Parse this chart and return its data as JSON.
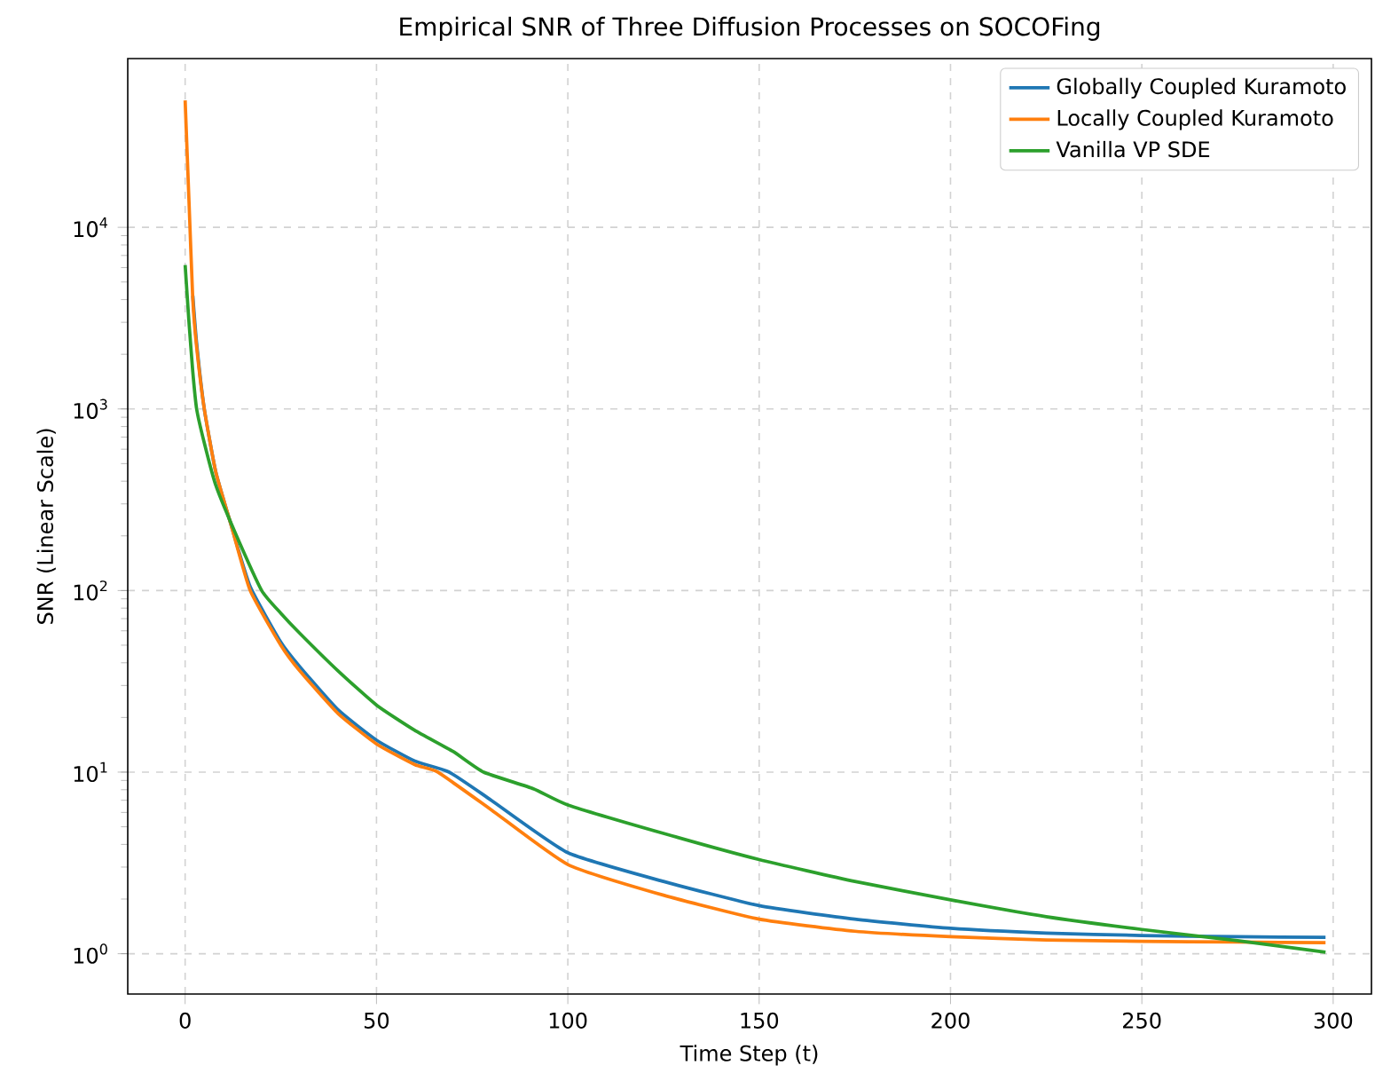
{
  "chart_data": {
    "type": "line",
    "title": "Empirical SNR of Three Diffusion Processes on SOCOFing",
    "xlabel": "Time Step (t)",
    "ylabel": "SNR (Linear Scale)",
    "log": "y",
    "grid": true,
    "legend": "top right",
    "xlim": [
      -15,
      310
    ],
    "xticks": [
      0,
      50,
      100,
      150,
      200,
      250,
      300
    ],
    "ylim": [
      0.6,
      85000
    ],
    "yticks": [
      {
        "value": 1,
        "label": "10$^{0}$"
      },
      {
        "value": 10,
        "label": "10$^{1}$"
      },
      {
        "value": 100,
        "label": "10$^{2}$"
      },
      {
        "value": 1000,
        "label": "10$^{3}$"
      },
      {
        "value": 10000,
        "label": "10$^{4}$"
      }
    ],
    "series": [
      {
        "name": "Globally Coupled Kuramoto",
        "color": "#1f77b4",
        "x": [
          2,
          3,
          5,
          8,
          12,
          17,
          25,
          30,
          40,
          50,
          60,
          69,
          80,
          100,
          125,
          150,
          175,
          200,
          225,
          250,
          275,
          298
        ],
        "values": [
          4200,
          2300,
          1000,
          450,
          230,
          105,
          52,
          38,
          22,
          15,
          11.5,
          10,
          7,
          3.6,
          2.5,
          1.84,
          1.55,
          1.38,
          1.3,
          1.26,
          1.24,
          1.23
        ]
      },
      {
        "name": "Locally Coupled Kuramoto",
        "color": "#ff7f0e",
        "x": [
          0,
          1,
          2,
          3,
          5,
          8,
          12,
          17,
          25,
          30,
          40,
          50,
          60,
          66,
          80,
          100,
          125,
          150,
          175,
          200,
          225,
          250,
          275,
          298
        ],
        "values": [
          50000,
          14000,
          4000,
          2200,
          1000,
          450,
          230,
          100,
          50,
          36,
          21,
          14.3,
          11,
          10,
          6.2,
          3.1,
          2.1,
          1.55,
          1.33,
          1.24,
          1.19,
          1.17,
          1.16,
          1.15
        ]
      },
      {
        "name": "Vanilla VP SDE",
        "color": "#2ca02c",
        "x": [
          0,
          1,
          2,
          3,
          5,
          8,
          13,
          20,
          25,
          30,
          40,
          50,
          60,
          70,
          78,
          91,
          100,
          125,
          150,
          175,
          200,
          225,
          250,
          275,
          298
        ],
        "values": [
          6200,
          3000,
          1600,
          1000,
          650,
          380,
          210,
          100,
          75,
          58,
          36,
          23.4,
          17,
          13,
          10,
          8.1,
          6.6,
          4.6,
          3.3,
          2.5,
          1.98,
          1.6,
          1.36,
          1.18,
          1.02
        ]
      }
    ]
  }
}
